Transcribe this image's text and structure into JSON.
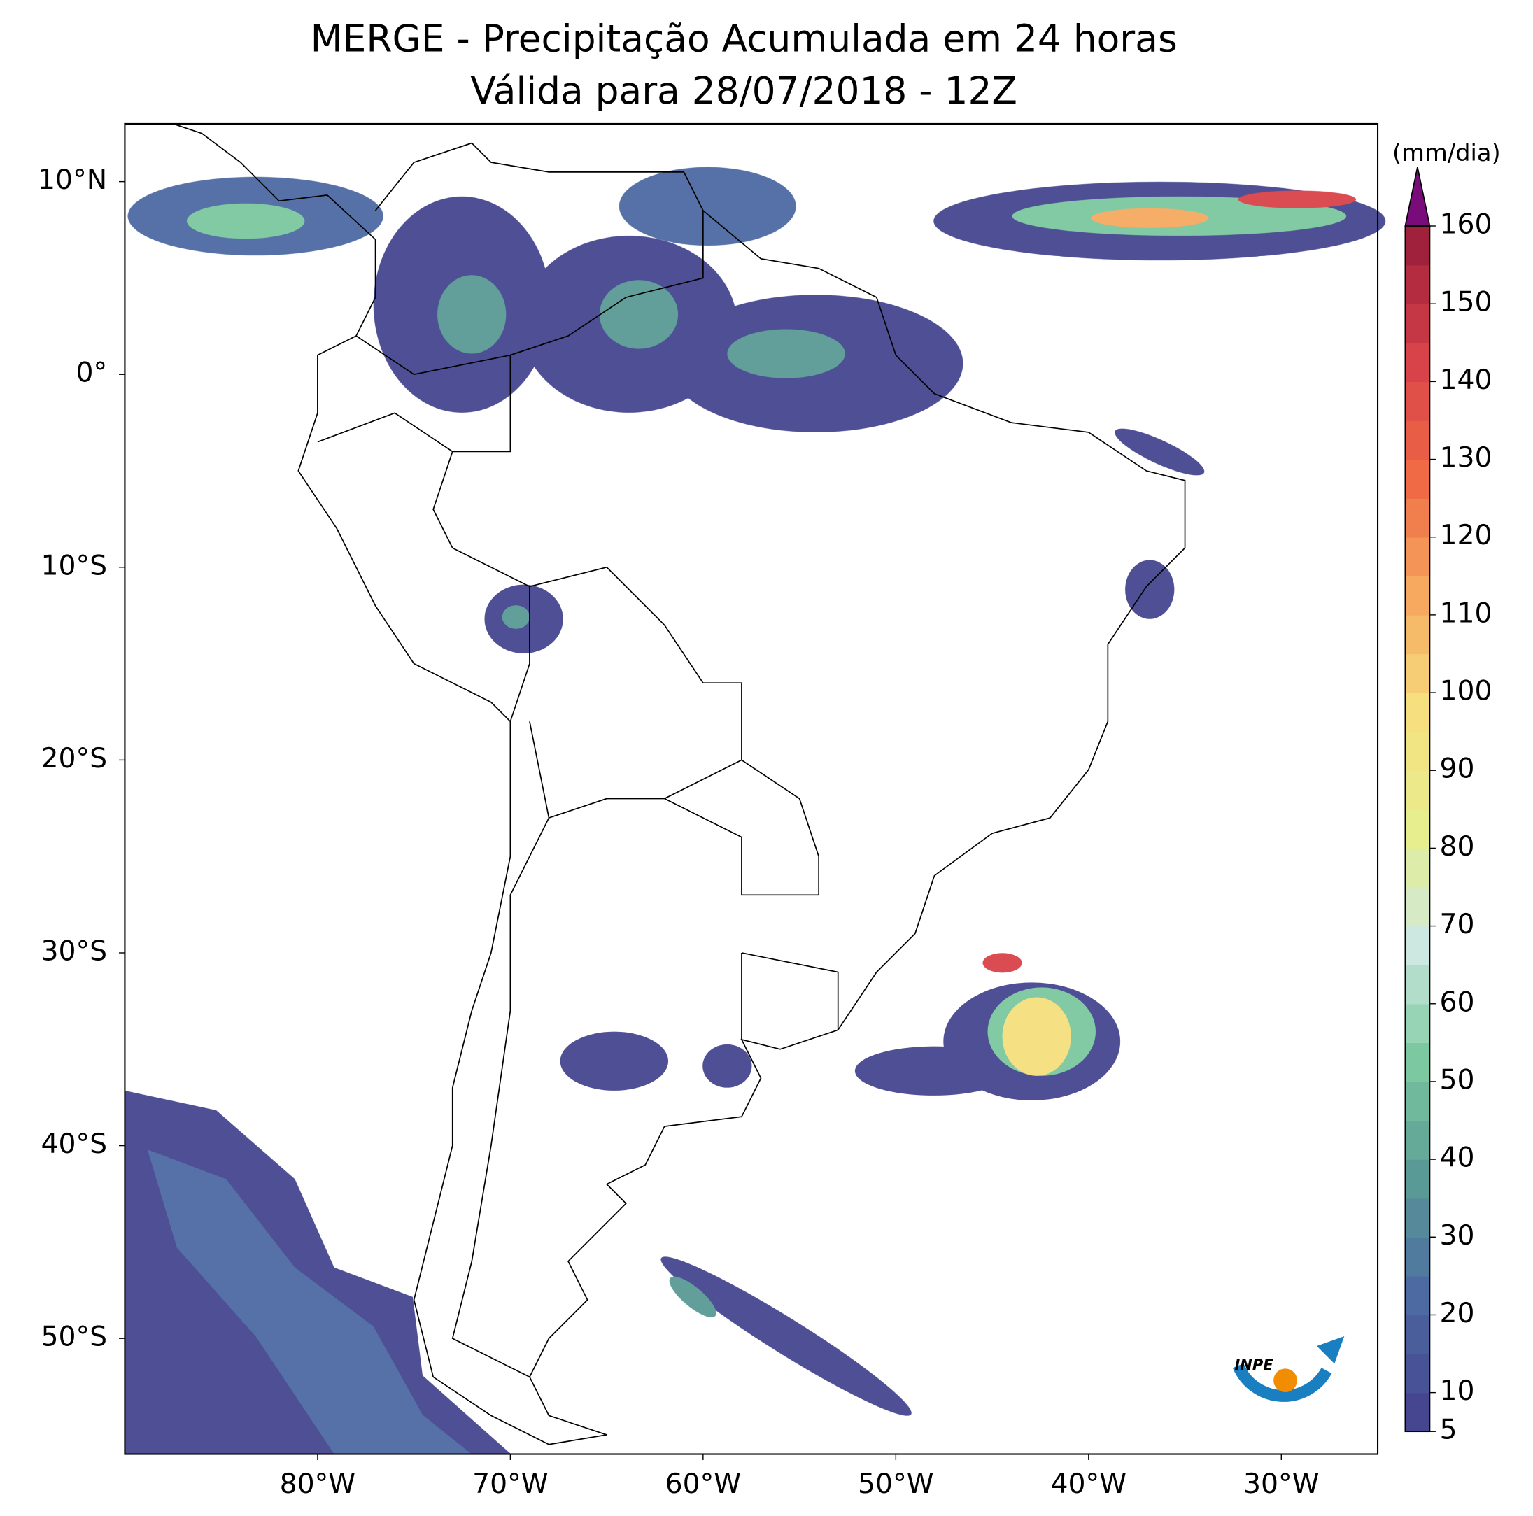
{
  "map": {
    "title": "MERGE - Precipitação Acumulada em 24 horas",
    "subtitle": "Válida para 28/07/2018 - 12Z",
    "xlim": [
      -90,
      -25
    ],
    "ylim": [
      -56,
      13
    ],
    "lon_ticks": [
      {
        "value": -80,
        "label": "80°W"
      },
      {
        "value": -70,
        "label": "70°W"
      },
      {
        "value": -60,
        "label": "60°W"
      },
      {
        "value": -50,
        "label": "50°W"
      },
      {
        "value": -40,
        "label": "40°W"
      },
      {
        "value": -30,
        "label": "30°W"
      }
    ],
    "lat_ticks": [
      {
        "value": 10,
        "label": "10°N"
      },
      {
        "value": 0,
        "label": "0°"
      },
      {
        "value": -10,
        "label": "10°S"
      },
      {
        "value": -20,
        "label": "20°S"
      },
      {
        "value": -30,
        "label": "30°S"
      },
      {
        "value": -40,
        "label": "40°S"
      },
      {
        "value": -50,
        "label": "50°S"
      }
    ],
    "logo": "INPE"
  },
  "colorbar": {
    "label": "(mm/dia)",
    "lim": [
      5,
      160
    ],
    "ticks": [
      5,
      10,
      20,
      30,
      40,
      50,
      60,
      70,
      80,
      90,
      100,
      110,
      120,
      130,
      140,
      150,
      160
    ],
    "levels": [
      5,
      10,
      15,
      20,
      25,
      30,
      35,
      40,
      45,
      50,
      55,
      60,
      65,
      70,
      75,
      80,
      85,
      90,
      95,
      100,
      105,
      110,
      115,
      120,
      125,
      130,
      135,
      140,
      145,
      150,
      155,
      160
    ],
    "colors": [
      "#45468f",
      "#4d6aa3",
      "#5a9a96",
      "#7cc8a0",
      "#cde8e0",
      "#e6ee8e",
      "#f6df7e",
      "#f6a95f",
      "#ef6a45",
      "#d84249",
      "#a0213c"
    ],
    "extend_color": "#7a0b7a"
  }
}
